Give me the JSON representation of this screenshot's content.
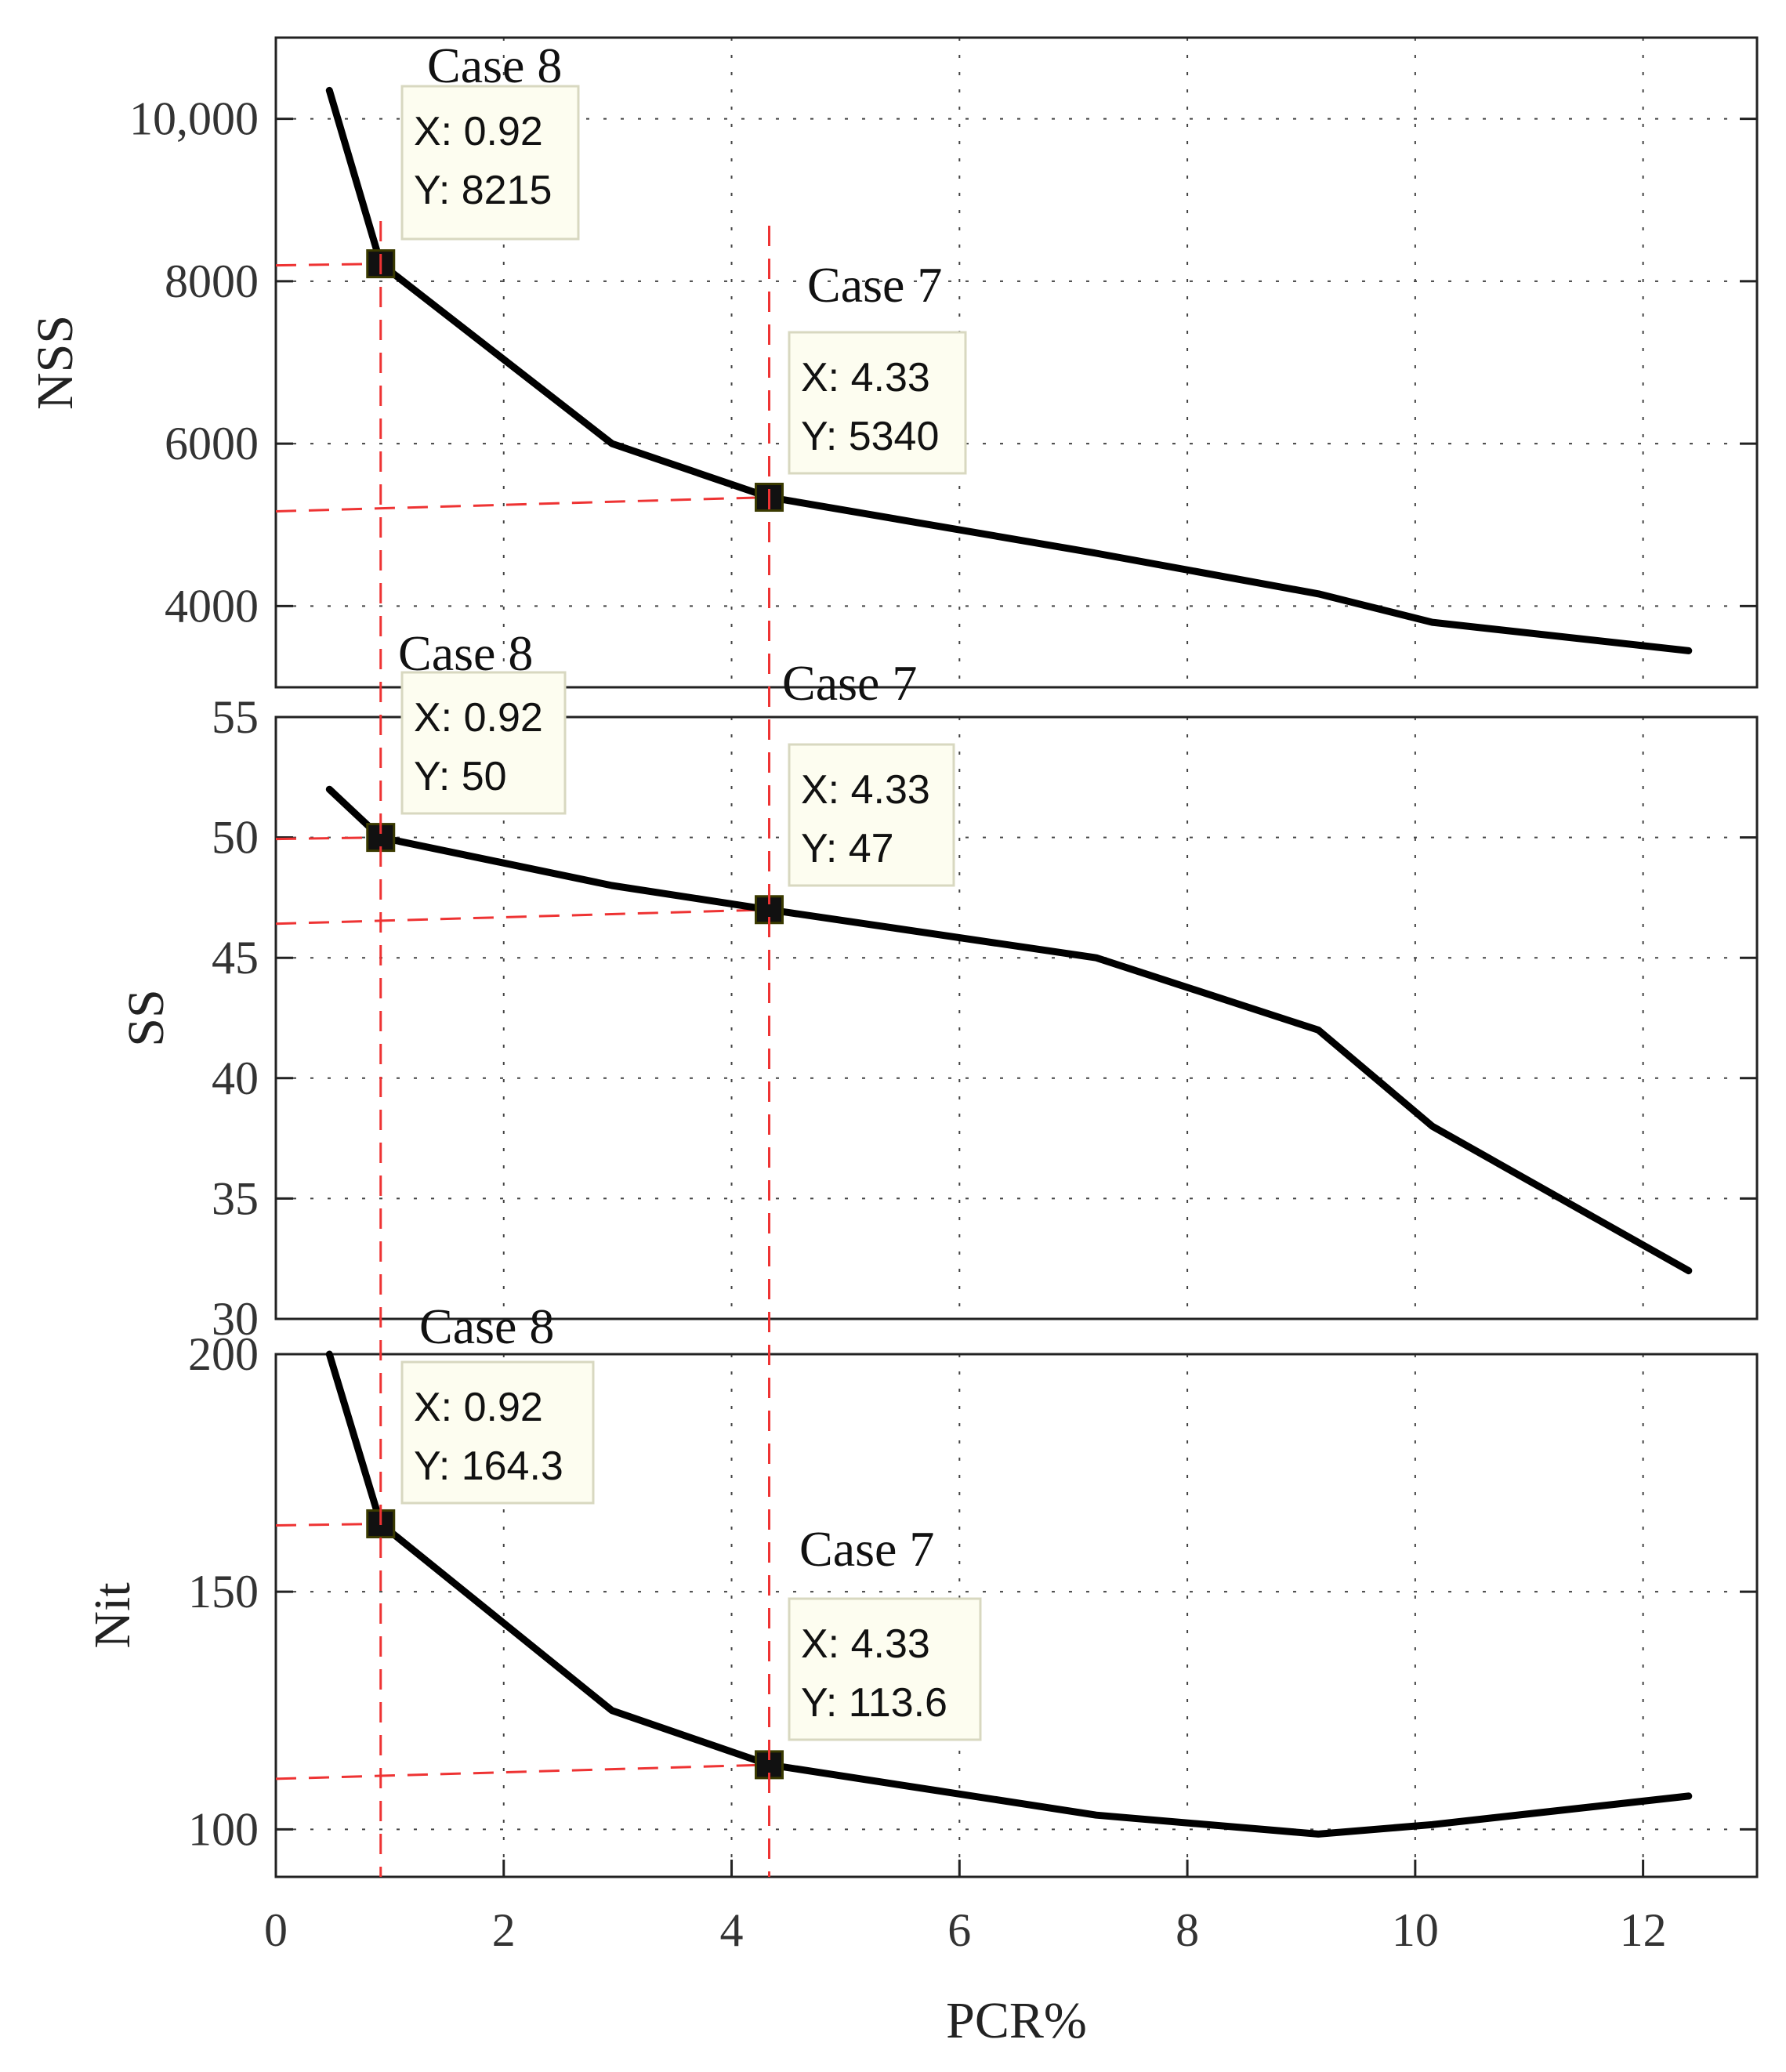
{
  "chart_data": [
    {
      "type": "line",
      "id": "nss",
      "ylabel": "NSS",
      "xlabel": "",
      "xlim": [
        0,
        13
      ],
      "ylim": [
        3000,
        11000
      ],
      "yticks": [
        4000,
        6000,
        8000,
        10000
      ],
      "ytick_labels": [
        "4000",
        "6000",
        "8000",
        "10,000"
      ],
      "x": [
        0.47,
        0.92,
        2.95,
        4.33,
        7.2,
        9.15,
        10.15,
        12.4
      ],
      "y": [
        10350,
        8215,
        6000,
        5340,
        4650,
        4150,
        3800,
        3450
      ],
      "grid": true,
      "annotations": [
        {
          "case": "Case 8",
          "x_text": "X: 0.92",
          "y_text": "Y: 8215",
          "x": 0.92,
          "y": 8215
        },
        {
          "case": "Case 7",
          "x_text": "X: 4.33",
          "y_text": "Y: 5340",
          "x": 4.33,
          "y": 5340
        }
      ]
    },
    {
      "type": "line",
      "id": "ss",
      "ylabel": "SS",
      "xlabel": "",
      "xlim": [
        0,
        13
      ],
      "ylim": [
        30,
        55
      ],
      "yticks": [
        30,
        35,
        40,
        45,
        50,
        55
      ],
      "ytick_labels": [
        "30",
        "35",
        "40",
        "45",
        "50",
        "55"
      ],
      "x": [
        0.47,
        0.92,
        2.95,
        4.33,
        7.2,
        9.15,
        10.15,
        12.4
      ],
      "y": [
        52,
        50,
        48,
        47,
        45,
        42,
        38,
        32
      ],
      "grid": true,
      "annotations": [
        {
          "case": "Case 8",
          "x_text": "X: 0.92",
          "y_text": "Y: 50",
          "x": 0.92,
          "y": 50
        },
        {
          "case": "Case 7",
          "x_text": "X: 4.33",
          "y_text": "Y: 47",
          "x": 4.33,
          "y": 47
        }
      ]
    },
    {
      "type": "line",
      "id": "nit",
      "ylabel": "Nit",
      "xlabel": "PCR%",
      "xlim": [
        0,
        13
      ],
      "ylim": [
        90,
        200
      ],
      "yticks": [
        100,
        150,
        200
      ],
      "ytick_labels": [
        "100",
        "150",
        "200"
      ],
      "xticks": [
        0,
        2,
        4,
        6,
        8,
        10,
        12
      ],
      "xtick_labels": [
        "0",
        "2",
        "4",
        "6",
        "8",
        "10",
        "12"
      ],
      "x": [
        0.47,
        0.92,
        2.95,
        4.33,
        7.2,
        9.15,
        10.15,
        12.4
      ],
      "y": [
        200,
        164.3,
        125,
        113.6,
        103,
        99,
        101,
        107
      ],
      "grid": true,
      "annotations": [
        {
          "case": "Case 8",
          "x_text": "X: 0.92",
          "y_text": "Y: 164.3",
          "x": 0.92,
          "y": 164.3
        },
        {
          "case": "Case 7",
          "x_text": "X: 4.33",
          "y_text": "Y: 113.6",
          "x": 4.33,
          "y": 113.6
        }
      ]
    }
  ]
}
